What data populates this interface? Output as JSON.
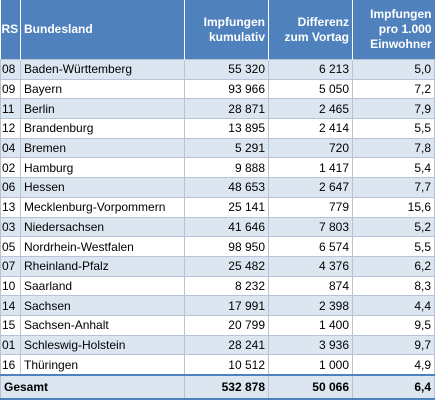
{
  "header": {
    "rs": "RS",
    "bundesland": "Bundesland",
    "impfungen_line1": "Impfungen",
    "impfungen_line2": "kumulativ",
    "differenz_line1": "Differenz",
    "differenz_line2": "zum Vortag",
    "pro_line1": "Impfungen",
    "pro_line2": "pro 1.000",
    "pro_line3": "Einwohner"
  },
  "rows": [
    {
      "rs": "08",
      "land": "Baden-Württemberg",
      "impfungen": "55 320",
      "differenz": "6 213",
      "pro1000": "5,0"
    },
    {
      "rs": "09",
      "land": "Bayern",
      "impfungen": "93 966",
      "differenz": "5 050",
      "pro1000": "7,2"
    },
    {
      "rs": "11",
      "land": "Berlin",
      "impfungen": "28 871",
      "differenz": "2 465",
      "pro1000": "7,9"
    },
    {
      "rs": "12",
      "land": "Brandenburg",
      "impfungen": "13 895",
      "differenz": "2 414",
      "pro1000": "5,5"
    },
    {
      "rs": "04",
      "land": "Bremen",
      "impfungen": "5 291",
      "differenz": "720",
      "pro1000": "7,8"
    },
    {
      "rs": "02",
      "land": "Hamburg",
      "impfungen": "9 888",
      "differenz": "1 417",
      "pro1000": "5,4"
    },
    {
      "rs": "06",
      "land": "Hessen",
      "impfungen": "48 653",
      "differenz": "2 647",
      "pro1000": "7,7"
    },
    {
      "rs": "13",
      "land": "Mecklenburg-Vorpommern",
      "impfungen": "25 141",
      "differenz": "779",
      "pro1000": "15,6"
    },
    {
      "rs": "03",
      "land": "Niedersachsen",
      "impfungen": "41 646",
      "differenz": "7 803",
      "pro1000": "5,2"
    },
    {
      "rs": "05",
      "land": "Nordrhein-Westfalen",
      "impfungen": "98 950",
      "differenz": "6 574",
      "pro1000": "5,5"
    },
    {
      "rs": "07",
      "land": "Rheinland-Pfalz",
      "impfungen": "25 482",
      "differenz": "4 376",
      "pro1000": "6,2"
    },
    {
      "rs": "10",
      "land": "Saarland",
      "impfungen": "8 232",
      "differenz": "874",
      "pro1000": "8,3"
    },
    {
      "rs": "14",
      "land": "Sachsen",
      "impfungen": "17 991",
      "differenz": "2 398",
      "pro1000": "4,4"
    },
    {
      "rs": "15",
      "land": "Sachsen-Anhalt",
      "impfungen": "20 799",
      "differenz": "1 400",
      "pro1000": "9,5"
    },
    {
      "rs": "01",
      "land": "Schleswig-Holstein",
      "impfungen": "28 241",
      "differenz": "3 936",
      "pro1000": "9,7"
    },
    {
      "rs": "16",
      "land": "Thüringen",
      "impfungen": "10 512",
      "differenz": "1 000",
      "pro1000": "4,9"
    }
  ],
  "total": {
    "label": "Gesamt",
    "impfungen": "532 878",
    "differenz": "50 066",
    "pro1000": "6,4"
  }
}
